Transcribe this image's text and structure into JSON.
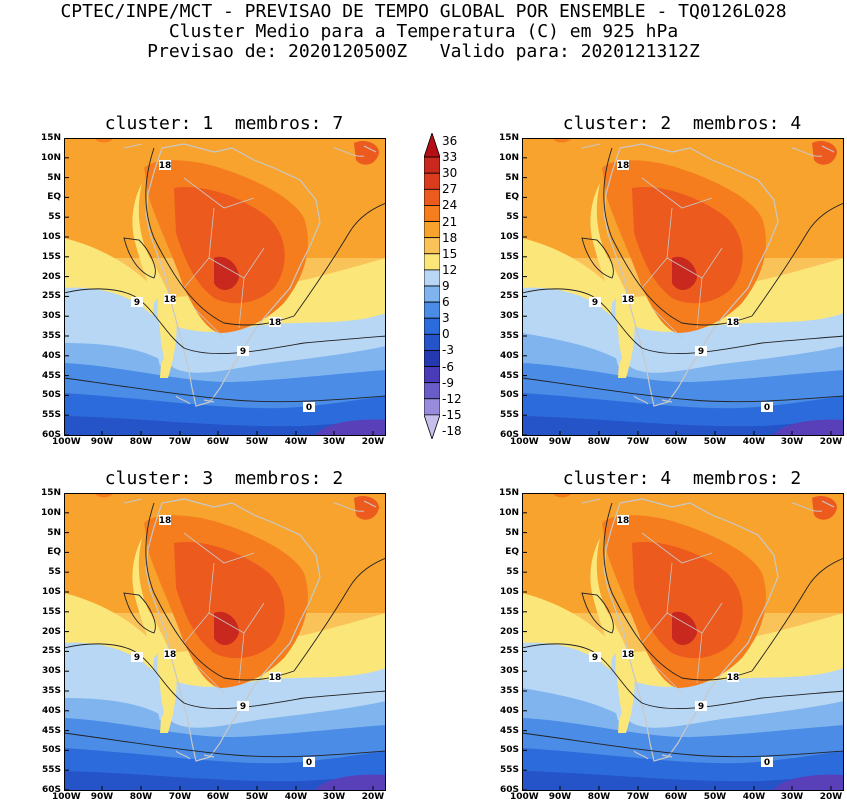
{
  "header": {
    "line1": "CPTEC/INPE/MCT - PREVISAO DE TEMPO GLOBAL POR ENSEMBLE - TQ0126L028",
    "line2": "Cluster Medio para a Temperatura (C) em 925 hPa",
    "line3": "Previsao de: 2020120500Z   Valido para: 2020121312Z"
  },
  "panels": [
    {
      "title": "cluster: 1  membros: 7"
    },
    {
      "title": "cluster: 2  membros: 4"
    },
    {
      "title": "cluster: 3  membros: 2"
    },
    {
      "title": "cluster: 4  membros: 2"
    }
  ],
  "lat_labels": [
    "15N",
    "10N",
    "5N",
    "EQ",
    "5S",
    "10S",
    "15S",
    "20S",
    "25S",
    "30S",
    "35S",
    "40S",
    "45S",
    "50S",
    "55S",
    "60S"
  ],
  "lon_labels": [
    "100W",
    "90W",
    "80W",
    "70W",
    "60W",
    "50W",
    "40W",
    "30W",
    "20W"
  ],
  "contour_labels": {
    "c18": "18",
    "c9": "9",
    "c0": "0"
  },
  "colorbar": {
    "levels": [
      "36",
      "33",
      "30",
      "27",
      "24",
      "21",
      "18",
      "15",
      "12",
      "9",
      "6",
      "3",
      "0",
      "-3",
      "-6",
      "-9",
      "-12",
      "-15",
      "-18"
    ],
    "colors": [
      "#b40f14",
      "#c8281e",
      "#dc3c1e",
      "#ec5a1e",
      "#f57d1e",
      "#f7a32e",
      "#fac35a",
      "#fbe67a",
      "#b7d7f5",
      "#7fb4ee",
      "#4a8ce6",
      "#2c6bdc",
      "#2553c8",
      "#2438b0",
      "#4a3cb8",
      "#6a5cc8",
      "#9a8cdc",
      "#c8c0ec"
    ]
  }
}
